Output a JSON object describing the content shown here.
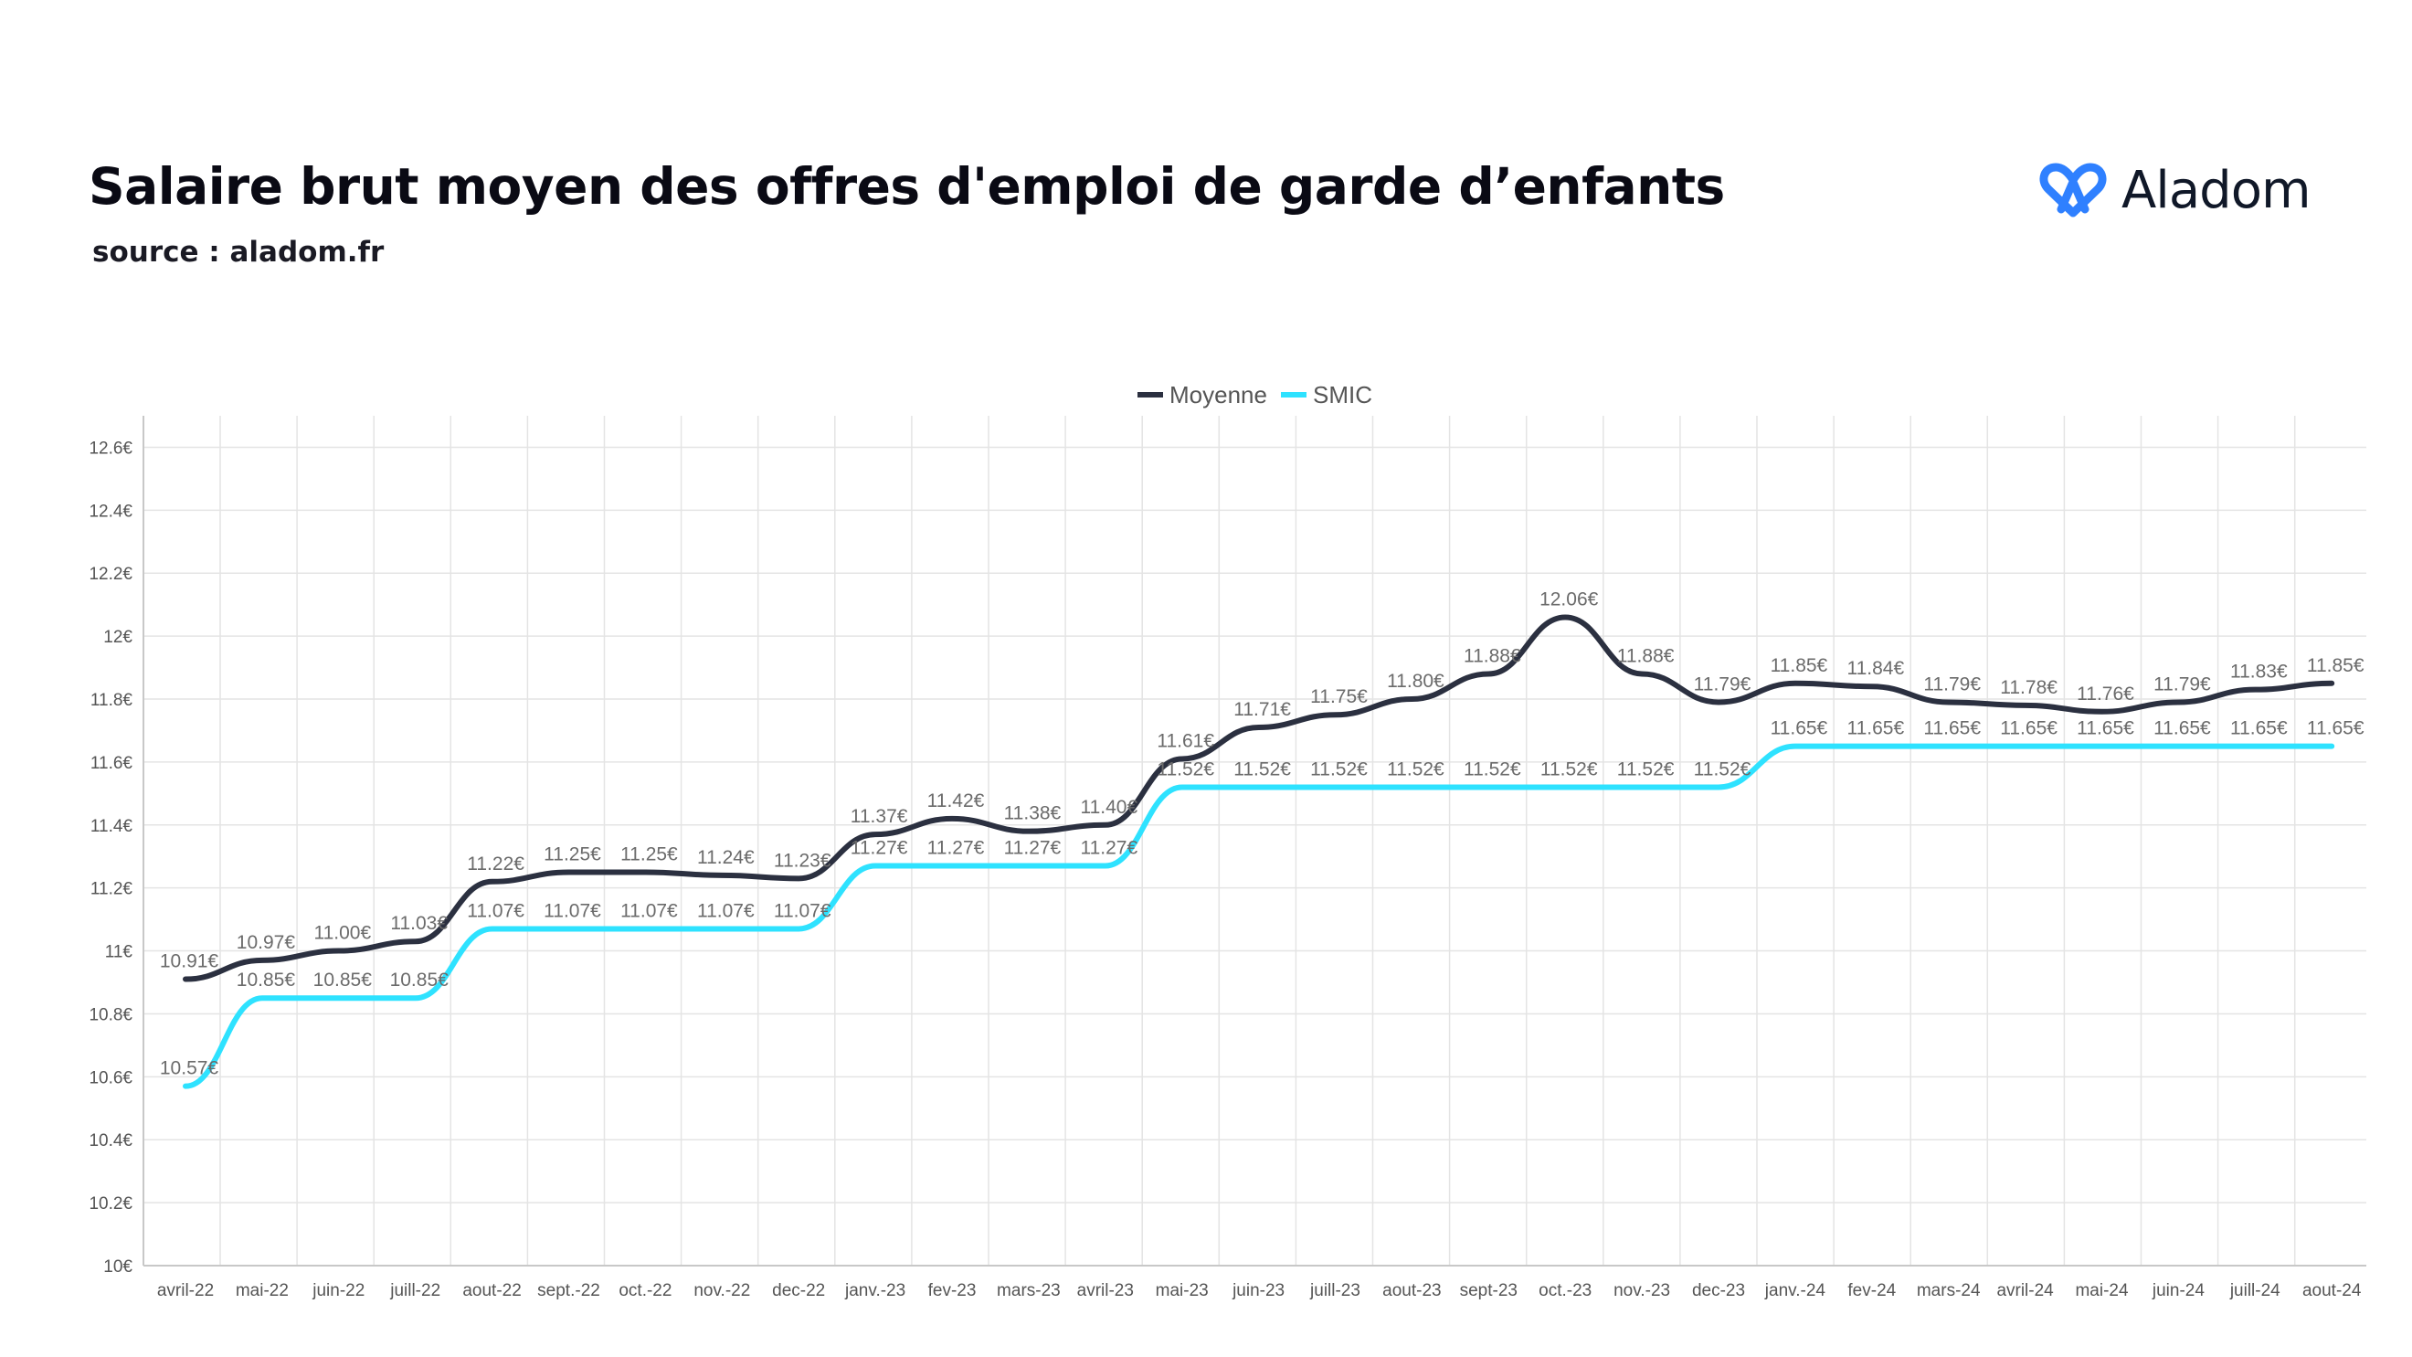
{
  "header": {
    "title": "Salaire brut moyen des offres d'emploi de garde d’enfants",
    "subtitle": "source : aladom.fr",
    "brand_name": "Aladom"
  },
  "colors": {
    "moyenne": "#2b3040",
    "smic": "#2ee2ff",
    "grid": "#e4e4e4",
    "axis_text": "#555555",
    "label_text": "#6b6b6b",
    "brand_blue": "#2f80ff"
  },
  "chart_data": {
    "type": "line",
    "legend_position": "top-center",
    "grid": true,
    "categories": [
      "avril-22",
      "mai-22",
      "juin-22",
      "juill-22",
      "aout-22",
      "sept.-22",
      "oct.-22",
      "nov.-22",
      "dec-22",
      "janv.-23",
      "fev-23",
      "mars-23",
      "avril-23",
      "mai-23",
      "juin-23",
      "juill-23",
      "aout-23",
      "sept-23",
      "oct.-23",
      "nov.-23",
      "dec-23",
      "janv.-24",
      "fev-24",
      "mars-24",
      "avril-24",
      "mai-24",
      "juin-24",
      "juill-24",
      "aout-24"
    ],
    "ylim": [
      10,
      12.7
    ],
    "yticks": [
      10,
      10.2,
      10.4,
      10.6,
      10.8,
      11,
      11.2,
      11.4,
      11.6,
      11.8,
      12,
      12.2,
      12.4,
      12.6
    ],
    "ytick_labels": [
      "10€",
      "10.2€",
      "10.4€",
      "10.6€",
      "10.8€",
      "11€",
      "11.2€",
      "11.4€",
      "11.6€",
      "11.8€",
      "12€",
      "12.2€",
      "12.4€",
      "12.6€"
    ],
    "series": [
      {
        "name": "Moyenne",
        "color": "#2b3040",
        "values": [
          10.91,
          10.97,
          11.0,
          11.03,
          11.22,
          11.25,
          11.25,
          11.24,
          11.23,
          11.37,
          11.42,
          11.38,
          11.4,
          11.61,
          11.71,
          11.75,
          11.8,
          11.88,
          12.06,
          11.88,
          11.79,
          11.85,
          11.84,
          11.79,
          11.78,
          11.76,
          11.79,
          11.83,
          11.85
        ],
        "labels": [
          "10.91€",
          "10.97€",
          "11.00€",
          "11.03€",
          "11.22€",
          "11.25€",
          "11.25€",
          "11.24€",
          "11.23€",
          "11.37€",
          "11.42€",
          "11.38€",
          "11.40€",
          "11.61€",
          "11.71€",
          "11.75€",
          "11.80€",
          "11.88€",
          "12.06€",
          "11.88€",
          "11.79€",
          "11.85€",
          "11.84€",
          "11.79€",
          "11.78€",
          "11.76€",
          "11.79€",
          "11.83€",
          "11.85€"
        ]
      },
      {
        "name": "SMIC",
        "color": "#2ee2ff",
        "values": [
          10.57,
          10.85,
          10.85,
          10.85,
          11.07,
          11.07,
          11.07,
          11.07,
          11.07,
          11.27,
          11.27,
          11.27,
          11.27,
          11.52,
          11.52,
          11.52,
          11.52,
          11.52,
          11.52,
          11.52,
          11.52,
          11.65,
          11.65,
          11.65,
          11.65,
          11.65,
          11.65,
          11.65,
          11.65
        ],
        "labels": [
          "10.57€",
          "10.85€",
          "10.85€",
          "10.85€",
          "11.07€",
          "11.07€",
          "11.07€",
          "11.07€",
          "11.07€",
          "11.27€",
          "11.27€",
          "11.27€",
          "11.27€",
          "11.52€",
          "11.52€",
          "11.52€",
          "11.52€",
          "11.52€",
          "11.52€",
          "11.52€",
          "11.52€",
          "11.65€",
          "11.65€",
          "11.65€",
          "11.65€",
          "11.65€",
          "11.65€",
          "11.65€",
          "11.65€"
        ]
      }
    ]
  }
}
